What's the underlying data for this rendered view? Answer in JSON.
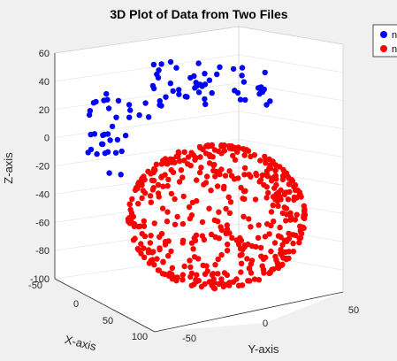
{
  "figure": {
    "background": "#f0f0f0"
  },
  "chart_data": {
    "type": "scatter3d",
    "title": "3D Plot of Data from Two Files",
    "xlabel": "X-axis",
    "ylabel": "Y-axis",
    "zlabel": "Z-axis",
    "xlim": [
      -50,
      100
    ],
    "ylim": [
      -50,
      50
    ],
    "zlim": [
      -100,
      60
    ],
    "xticks": [
      "-50",
      "0",
      "50",
      "100"
    ],
    "yticks": [
      "-50",
      "0",
      "50"
    ],
    "zticks": [
      "60",
      "40",
      "20",
      "0",
      "-20",
      "-40",
      "-60",
      "-80",
      "-100"
    ],
    "grid": true,
    "legend_position": "top-right (partially cut off)",
    "legend": [
      {
        "label": "n",
        "color": "#0000ff"
      },
      {
        "label": "n",
        "color": "#ff0000"
      }
    ],
    "series": [
      {
        "color": "#0000ff"
      },
      {
        "color": "#ff0000"
      }
    ]
  }
}
